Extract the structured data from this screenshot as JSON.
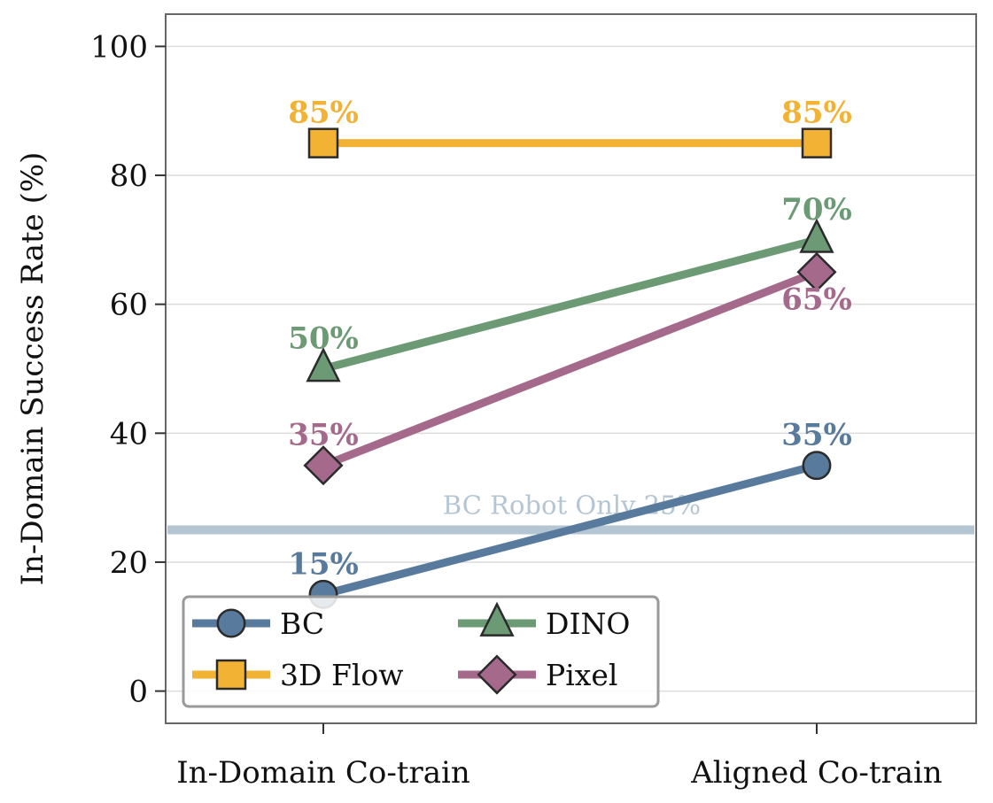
{
  "chart_data": {
    "type": "line",
    "categories": [
      "In-Domain Co-train",
      "Aligned Co-train"
    ],
    "ylabel": "In-Domain Success Rate (%)",
    "xlabel": "",
    "ylim": [
      -5,
      105
    ],
    "yticks": [
      0,
      20,
      40,
      60,
      80,
      100
    ],
    "grid": "horizontal",
    "legend_position": "bottom-left",
    "series": [
      {
        "name": "BC",
        "values": [
          15,
          35
        ],
        "labels": [
          "15%",
          "35%"
        ],
        "color": "#587a9c",
        "marker": "circle",
        "label_placement": [
          "above",
          "above"
        ]
      },
      {
        "name": "3D Flow",
        "values": [
          85,
          85
        ],
        "labels": [
          "85%",
          "85%"
        ],
        "color": "#f2b233",
        "marker": "square",
        "label_placement": [
          "above",
          "above"
        ]
      },
      {
        "name": "DINO",
        "values": [
          50,
          70
        ],
        "labels": [
          "50%",
          "70%"
        ],
        "color": "#6b9a74",
        "marker": "triangle",
        "label_placement": [
          "above",
          "above"
        ]
      },
      {
        "name": "Pixel",
        "values": [
          35,
          65
        ],
        "labels": [
          "35%",
          "65%"
        ],
        "color": "#a4698b",
        "marker": "diamond",
        "label_placement": [
          "above",
          "below"
        ]
      }
    ],
    "reference_line": {
      "value": 25,
      "label": "BC Robot Only 25%",
      "color": "#b4c5d3"
    },
    "legend_order": [
      "BC",
      "DINO",
      "3D Flow",
      "Pixel"
    ]
  }
}
